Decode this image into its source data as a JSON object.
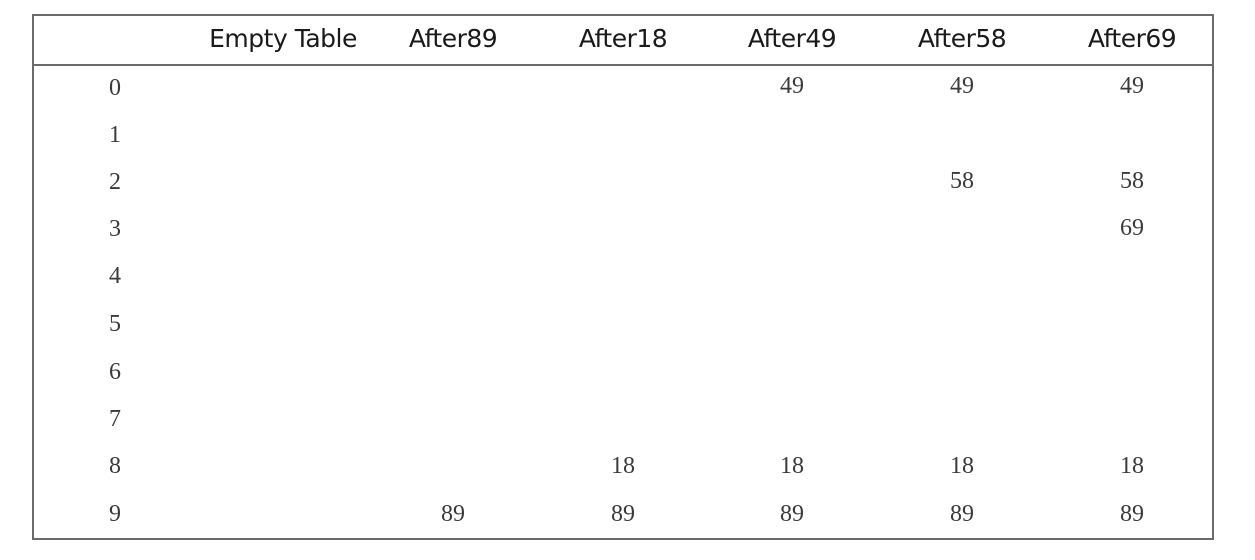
{
  "table": {
    "headers": [
      "",
      "Empty Table",
      "After89",
      "After18",
      "After49",
      "After58",
      "After69"
    ],
    "row_labels": [
      "0",
      "1",
      "2",
      "3",
      "4",
      "5",
      "6",
      "7",
      "8",
      "9"
    ],
    "rows": [
      [
        "",
        "",
        "",
        "49",
        "49",
        "49"
      ],
      [
        "",
        "",
        "",
        "",
        "",
        ""
      ],
      [
        "",
        "",
        "",
        "",
        "58",
        "58"
      ],
      [
        "",
        "",
        "",
        "",
        "",
        "69"
      ],
      [
        "",
        "",
        "",
        "",
        "",
        ""
      ],
      [
        "",
        "",
        "",
        "",
        "",
        ""
      ],
      [
        "",
        "",
        "",
        "",
        "",
        ""
      ],
      [
        "",
        "",
        "",
        "",
        "",
        ""
      ],
      [
        "",
        "",
        "18",
        "18",
        "18",
        "18"
      ],
      [
        "",
        "89",
        "89",
        "89",
        "89",
        "89"
      ]
    ]
  }
}
